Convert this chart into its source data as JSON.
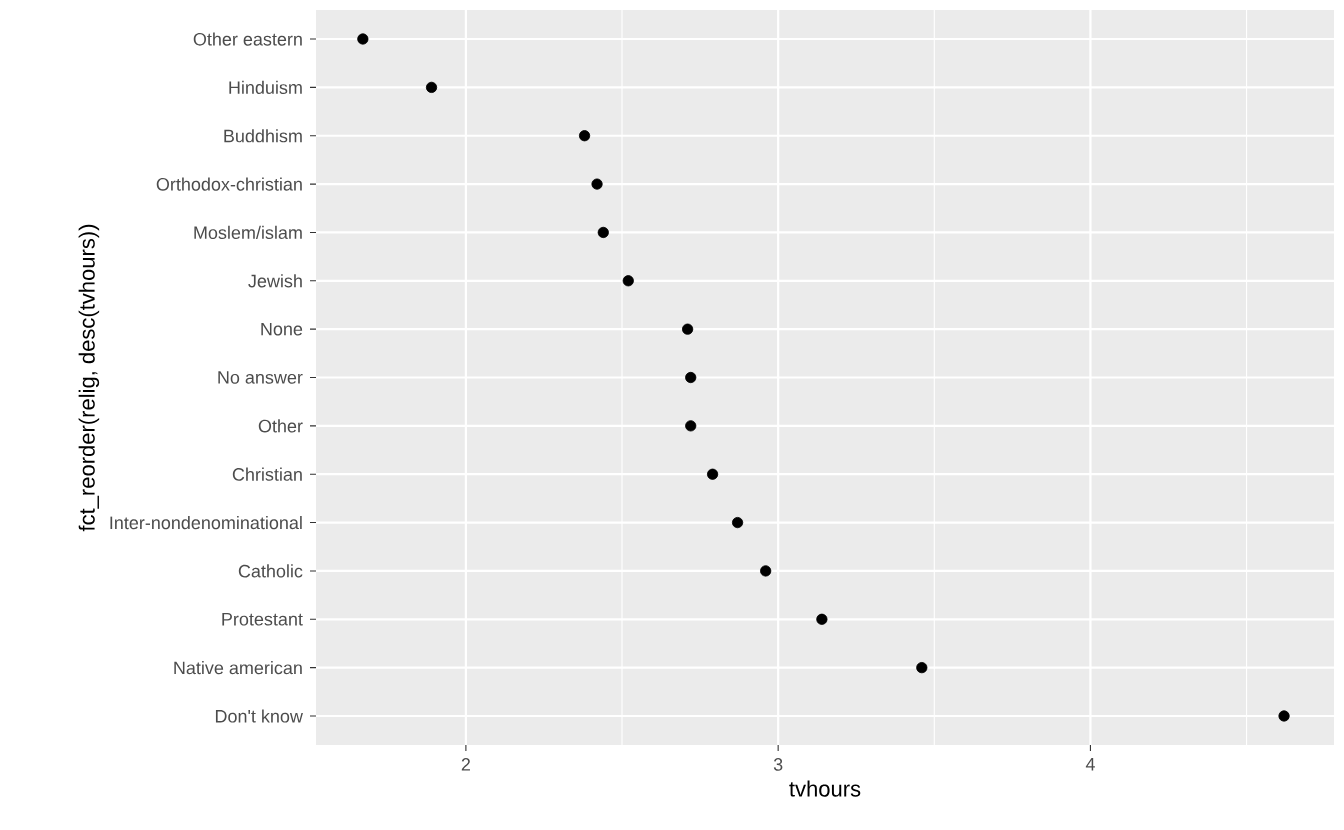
{
  "chart_data": {
    "type": "scatter",
    "xlabel": "tvhours",
    "ylabel": "fct_reorder(relig, desc(tvhours))",
    "categories": [
      "Other eastern",
      "Hinduism",
      "Buddhism",
      "Orthodox-christian",
      "Moslem/islam",
      "Jewish",
      "None",
      "No answer",
      "Other",
      "Christian",
      "Inter-nondenominational",
      "Catholic",
      "Protestant",
      "Native american",
      "Don't know"
    ],
    "orientation": "horizontal",
    "values": [
      1.67,
      1.89,
      2.38,
      2.42,
      2.44,
      2.52,
      2.71,
      2.72,
      2.72,
      2.79,
      2.87,
      2.96,
      3.14,
      3.46,
      4.62
    ],
    "color": "#000000",
    "marker": "circle",
    "xlim": [
      1.52,
      4.78
    ],
    "xticks": [
      2,
      3,
      4
    ],
    "grid": true
  }
}
